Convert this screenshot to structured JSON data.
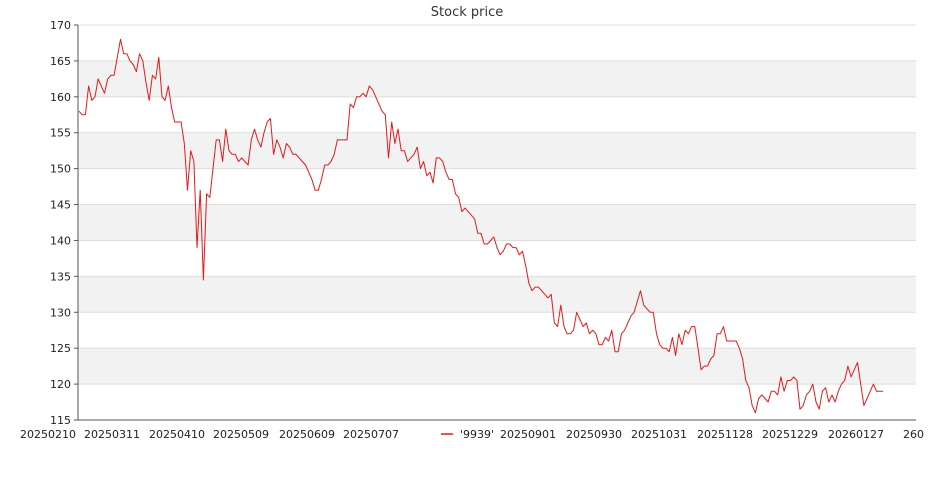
{
  "chart_data": {
    "type": "line",
    "title": "Stock price",
    "xlabel": "",
    "ylabel": "",
    "ylim": [
      115,
      170
    ],
    "yticks": [
      115,
      120,
      125,
      130,
      135,
      140,
      145,
      150,
      155,
      160,
      165,
      170
    ],
    "xtick_labels": [
      "20250210",
      "20250311",
      "20250410",
      "20250509",
      "20250609",
      "20250707",
      "20250901",
      "20250930",
      "20251031",
      "20251128",
      "20251229",
      "20260127",
      "260"
    ],
    "grid": true,
    "legend_position": "bottom-center",
    "series": [
      {
        "name": "'9939'",
        "color": "#e31a1c",
        "values": [
          158.0,
          157.5,
          157.5,
          161.5,
          159.5,
          160.0,
          162.5,
          161.5,
          160.5,
          162.5,
          163.0,
          163.0,
          165.5,
          168.0,
          166.0,
          166.0,
          165.0,
          164.5,
          163.5,
          166.0,
          165.0,
          162.0,
          159.5,
          163.0,
          162.5,
          165.5,
          160.0,
          159.5,
          161.5,
          158.5,
          156.5,
          156.5,
          156.5,
          153.5,
          147.0,
          152.5,
          151.0,
          139.0,
          147.0,
          134.5,
          146.5,
          146.0,
          150.0,
          154.0,
          154.0,
          151.0,
          155.5,
          152.5,
          152.0,
          152.0,
          151.0,
          151.5,
          151.0,
          150.5,
          154.0,
          155.5,
          154.0,
          153.0,
          155.0,
          156.5,
          157.0,
          152.0,
          154.0,
          153.0,
          151.5,
          153.5,
          153.0,
          152.0,
          152.0,
          151.5,
          151.0,
          150.5,
          149.5,
          148.5,
          147.0,
          147.0,
          148.5,
          150.5,
          150.5,
          151.0,
          152.0,
          154.0,
          154.0,
          154.0,
          154.0,
          159.0,
          158.5,
          160.0,
          160.0,
          160.5,
          160.0,
          161.5,
          161.0,
          160.0,
          159.0,
          158.0,
          157.5,
          151.5,
          156.5,
          153.5,
          155.5,
          152.5,
          152.5,
          151.0,
          151.5,
          152.0,
          153.0,
          150.0,
          151.0,
          149.0,
          149.5,
          148.0,
          151.5,
          151.5,
          151.0,
          149.5,
          148.5,
          148.5,
          146.5,
          146.0,
          144.0,
          144.5,
          144.0,
          143.5,
          143.0,
          141.0,
          141.0,
          139.5,
          139.5,
          140.0,
          140.5,
          139.0,
          138.0,
          138.5,
          139.5,
          139.5,
          139.0,
          139.0,
          138.0,
          138.5,
          136.5,
          134.0,
          133.0,
          133.5,
          133.5,
          133.0,
          132.5,
          132.0,
          132.5,
          128.5,
          128.0,
          131.0,
          128.0,
          127.0,
          127.0,
          127.5,
          130.0,
          129.0,
          128.0,
          128.5,
          127.0,
          127.5,
          127.0,
          125.5,
          125.5,
          126.5,
          126.0,
          127.5,
          124.5,
          124.5,
          127.0,
          127.5,
          128.5,
          129.5,
          130.0,
          131.5,
          133.0,
          131.0,
          130.5,
          130.0,
          130.0,
          127.0,
          125.5,
          125.0,
          125.0,
          124.5,
          126.5,
          124.0,
          127.0,
          125.5,
          127.5,
          127.0,
          128.0,
          128.0,
          125.0,
          122.0,
          122.5,
          122.5,
          123.5,
          124.0,
          127.0,
          127.0,
          128.0,
          126.0,
          126.0,
          126.0,
          126.0,
          125.0,
          123.5,
          120.5,
          119.5,
          117.0,
          116.0,
          118.0,
          118.5,
          118.0,
          117.5,
          119.0,
          119.0,
          118.5,
          121.0,
          119.0,
          120.5,
          120.5,
          121.0,
          120.5,
          116.5,
          117.0,
          118.5,
          119.0,
          120.0,
          117.5,
          116.5,
          119.0,
          119.5,
          117.5,
          118.5,
          117.5,
          119.0,
          120.0,
          120.5,
          122.5,
          121.0,
          122.0,
          123.0,
          120.0,
          117.0,
          118.0,
          119.0,
          120.0,
          119.0,
          119.0,
          119.0
        ]
      }
    ]
  }
}
